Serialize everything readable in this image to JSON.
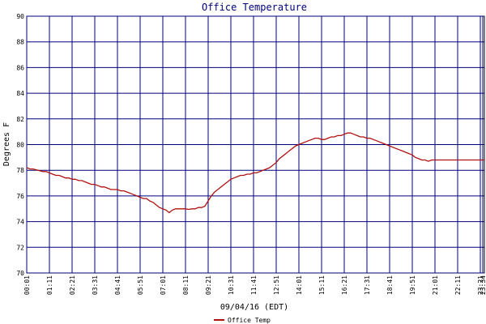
{
  "chart_data": {
    "type": "line",
    "title": "Office Temperature",
    "xlabel": "09/04/16 (EDT)",
    "ylabel": "Degrees F",
    "ylim": [
      70,
      90
    ],
    "yticks": [
      "70",
      "72",
      "74",
      "76",
      "78",
      "80",
      "82",
      "84",
      "86",
      "88",
      "90"
    ],
    "x_tick_labels": [
      "00:01",
      "01:11",
      "02:21",
      "03:31",
      "04:41",
      "05:51",
      "07:01",
      "08:11",
      "09:21",
      "10:31",
      "11:41",
      "12:51",
      "14:01",
      "15:11",
      "16:21",
      "17:31",
      "18:41",
      "19:51",
      "21:01",
      "22:11",
      "23:21",
      "23:34"
    ],
    "grid": true,
    "legend": "bottom-left",
    "colors": {
      "series": "#b01010",
      "grid": "#00007a",
      "axes": "#000000",
      "title": "#00007a"
    },
    "series": [
      {
        "name": "Office Temp",
        "x": [
          0,
          10,
          20,
          35,
          50,
          60,
          70,
          80,
          90,
          100,
          110,
          120,
          130,
          140,
          150,
          160,
          170,
          180,
          190,
          200,
          210,
          220,
          230,
          240,
          250,
          260,
          270,
          280,
          290,
          300,
          310,
          320,
          330,
          340,
          350,
          360,
          370,
          380,
          390,
          400,
          410,
          420,
          430,
          440,
          450,
          460,
          470,
          480,
          490,
          500,
          510,
          520,
          530,
          540,
          550,
          560,
          570,
          580,
          590,
          600,
          610,
          620,
          630,
          640,
          650,
          660,
          670,
          680,
          690,
          700,
          710,
          720,
          730,
          740,
          750,
          760,
          770,
          780,
          790,
          800,
          810,
          820,
          830,
          840,
          850,
          860,
          870,
          880,
          890,
          900,
          910,
          920,
          930,
          940,
          950,
          960,
          970,
          980,
          990,
          1000,
          1010,
          1020,
          1030,
          1040,
          1050,
          1060,
          1070,
          1080,
          1090,
          1100,
          1110,
          1120,
          1130,
          1140,
          1150,
          1160,
          1170,
          1180,
          1190,
          1200,
          1210,
          1220,
          1230,
          1240,
          1250,
          1260,
          1270,
          1280,
          1290,
          1300,
          1310,
          1320,
          1330,
          1340,
          1350,
          1360,
          1370,
          1380,
          1390,
          1400,
          1413
        ],
        "values": [
          78.2,
          78.1,
          78.1,
          78.0,
          77.9,
          77.9,
          77.8,
          77.7,
          77.6,
          77.6,
          77.5,
          77.4,
          77.4,
          77.3,
          77.3,
          77.2,
          77.2,
          77.1,
          77.0,
          76.9,
          76.9,
          76.8,
          76.7,
          76.7,
          76.6,
          76.5,
          76.5,
          76.5,
          76.4,
          76.4,
          76.3,
          76.2,
          76.1,
          76.0,
          75.9,
          75.8,
          75.8,
          75.6,
          75.5,
          75.3,
          75.1,
          75.0,
          74.9,
          74.7,
          74.9,
          75.0,
          75.0,
          75.0,
          75.0,
          74.95,
          75.0,
          75.0,
          75.1,
          75.1,
          75.2,
          75.6,
          76.0,
          76.3,
          76.5,
          76.7,
          76.9,
          77.1,
          77.3,
          77.4,
          77.5,
          77.6,
          77.6,
          77.7,
          77.7,
          77.8,
          77.8,
          77.9,
          78.0,
          78.1,
          78.2,
          78.4,
          78.6,
          78.9,
          79.1,
          79.3,
          79.5,
          79.7,
          79.9,
          80.0,
          80.1,
          80.2,
          80.3,
          80.4,
          80.5,
          80.5,
          80.4,
          80.4,
          80.5,
          80.6,
          80.6,
          80.7,
          80.7,
          80.8,
          80.9,
          80.9,
          80.8,
          80.7,
          80.6,
          80.6,
          80.5,
          80.5,
          80.4,
          80.3,
          80.2,
          80.1,
          80.0,
          79.9,
          79.8,
          79.7,
          79.6,
          79.5,
          79.4,
          79.3,
          79.2,
          79.0,
          78.9,
          78.8,
          78.8,
          78.7,
          78.8,
          78.8,
          78.8,
          78.8,
          78.8,
          78.8,
          78.8,
          78.8,
          78.8,
          78.8,
          78.8,
          78.8,
          78.8,
          78.8,
          78.8,
          78.8,
          78.8
        ]
      }
    ]
  }
}
